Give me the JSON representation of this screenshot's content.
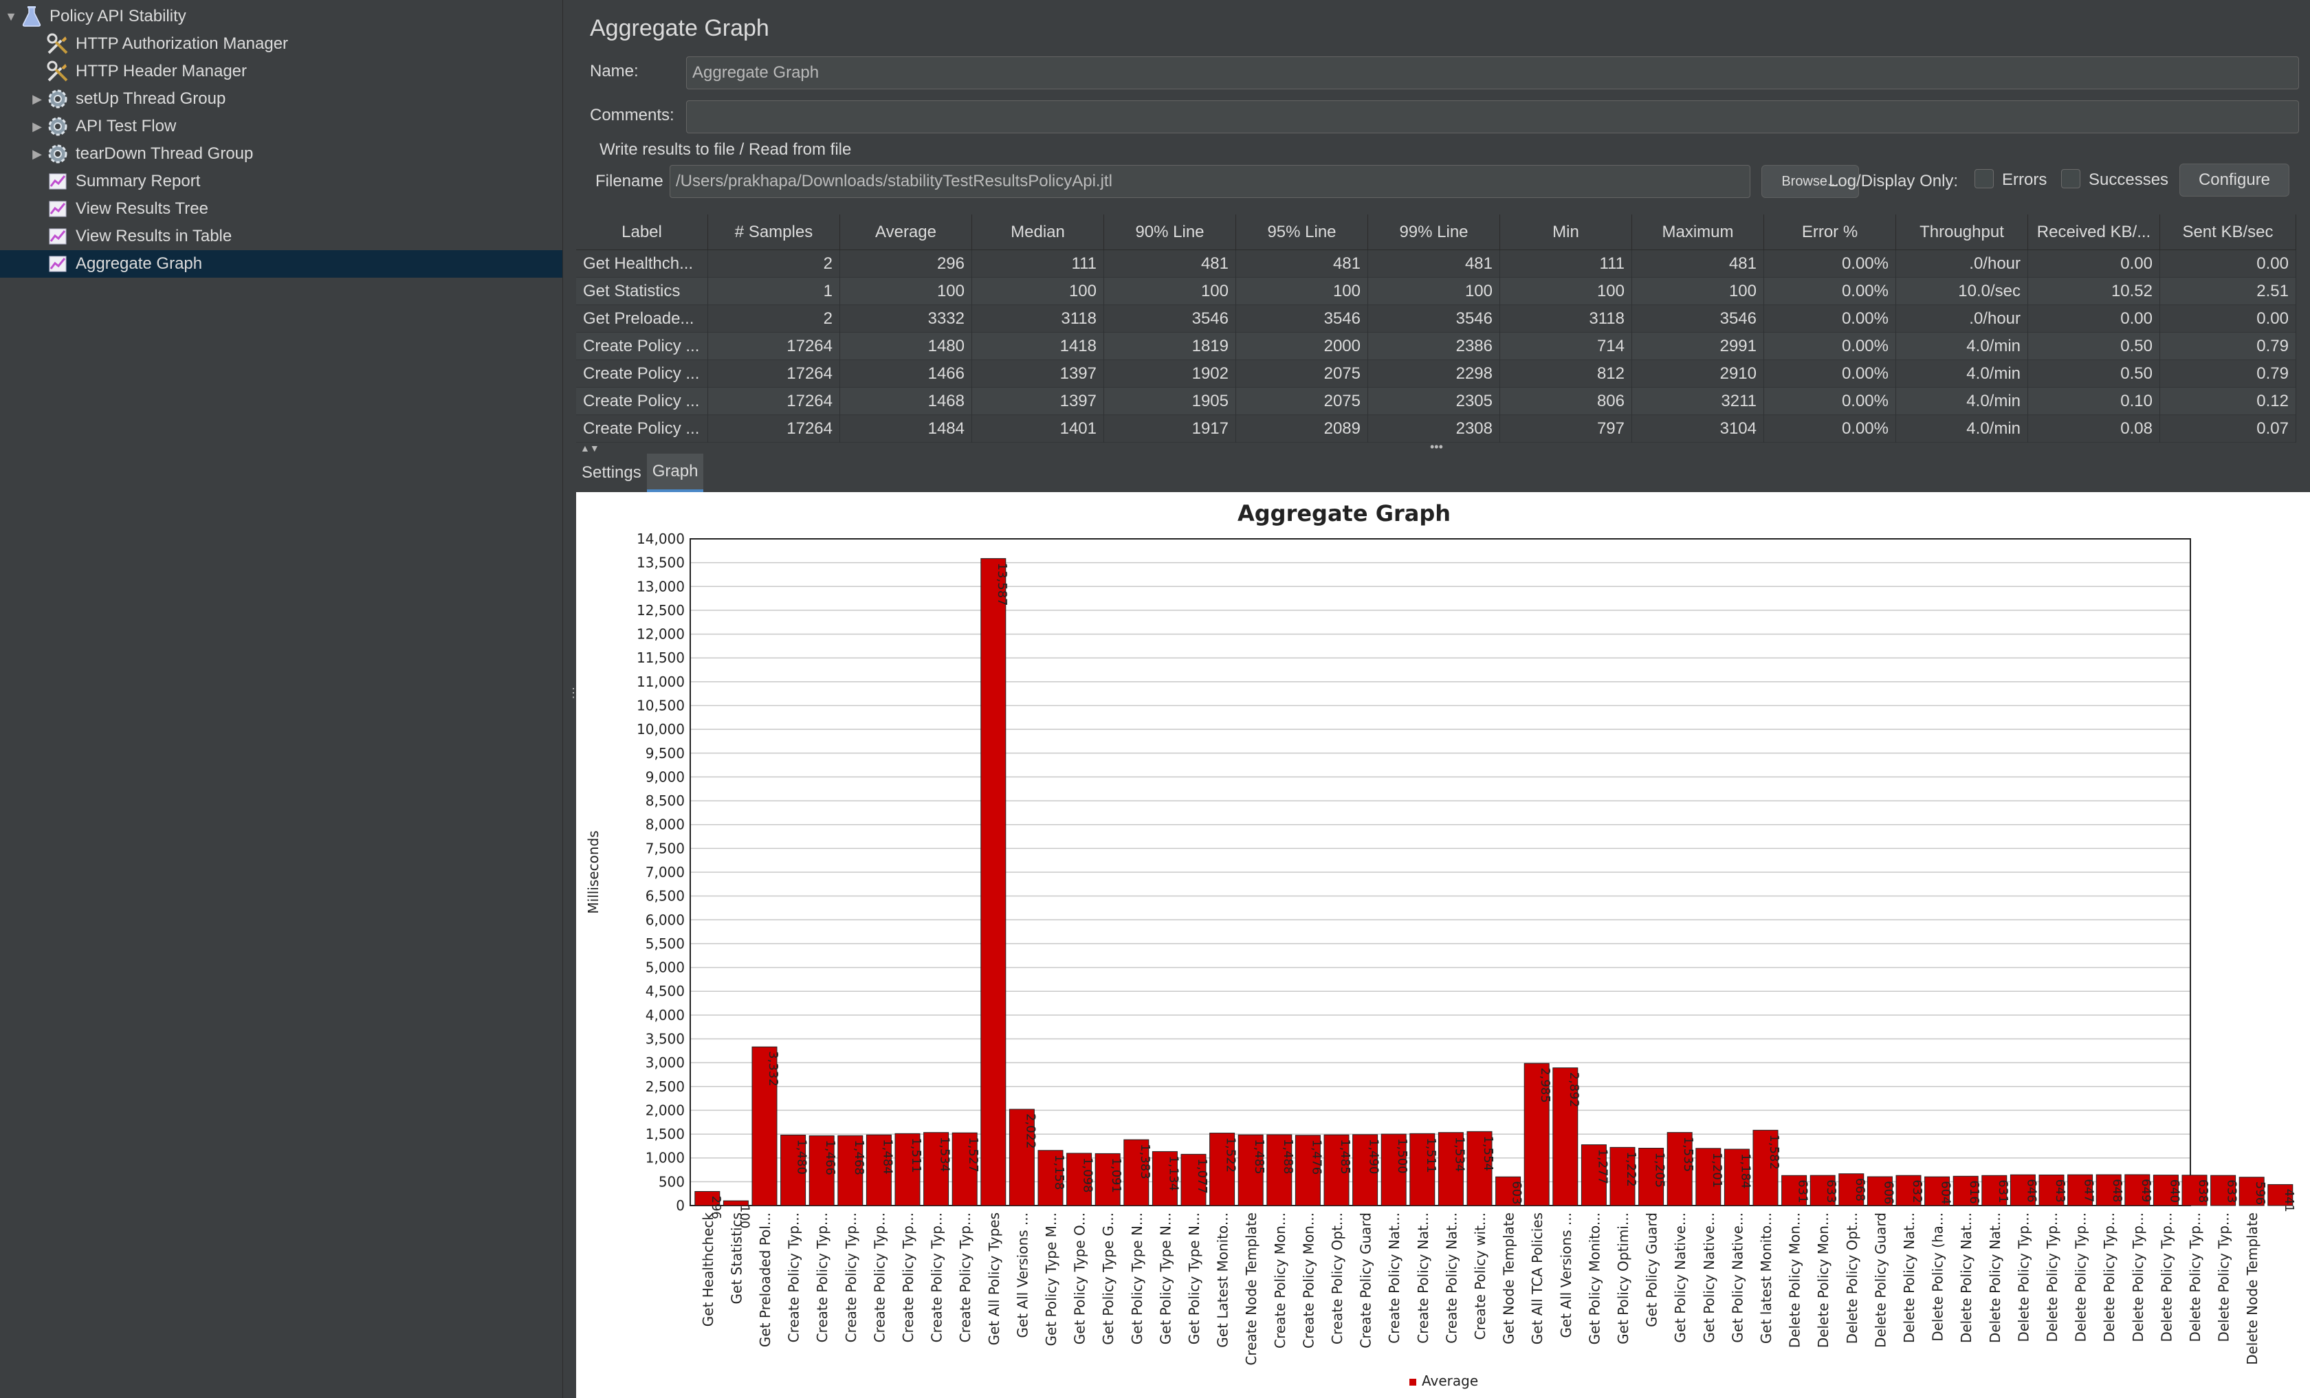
{
  "tree": {
    "items": [
      {
        "label": "Policy API Stability",
        "icon": "flask-icon",
        "level": 0,
        "toggle": "expanded"
      },
      {
        "label": "HTTP Authorization Manager",
        "icon": "tools-icon",
        "level": 1,
        "toggle": "none"
      },
      {
        "label": "HTTP Header Manager",
        "icon": "tools-icon",
        "level": 1,
        "toggle": "none"
      },
      {
        "label": "setUp Thread Group",
        "icon": "gear-icon",
        "level": 1,
        "toggle": "collapsed"
      },
      {
        "label": "API Test Flow",
        "icon": "gear-icon",
        "level": 1,
        "toggle": "collapsed"
      },
      {
        "label": "tearDown Thread Group",
        "icon": "gear-icon",
        "level": 1,
        "toggle": "collapsed"
      },
      {
        "label": "Summary Report",
        "icon": "chart-icon",
        "level": 1,
        "toggle": "none"
      },
      {
        "label": "View Results Tree",
        "icon": "chart-icon",
        "level": 1,
        "toggle": "none"
      },
      {
        "label": "View Results in Table",
        "icon": "chart-icon",
        "level": 1,
        "toggle": "none"
      },
      {
        "label": "Aggregate Graph",
        "icon": "chart-icon",
        "level": 1,
        "toggle": "none",
        "selected": true
      }
    ]
  },
  "panel": {
    "title": "Aggregate Graph",
    "name_label": "Name:",
    "name_value": "Aggregate Graph",
    "comments_label": "Comments:",
    "comments_value": "",
    "file_section_title": "Write results to file / Read from file",
    "filename_label": "Filename",
    "filename_value": "/Users/prakhapa/Downloads/stabilityTestResultsPolicyApi.jtl",
    "browse_label": "Browse...",
    "log_display_label": "Log/Display Only:",
    "errors_label": "Errors",
    "successes_label": "Successes",
    "configure_label": "Configure"
  },
  "table": {
    "headers": [
      "Label",
      "# Samples",
      "Average",
      "Median",
      "90% Line",
      "95% Line",
      "99% Line",
      "Min",
      "Maximum",
      "Error %",
      "Throughput",
      "Received KB/...",
      "Sent KB/sec"
    ],
    "rows": [
      [
        "Get Healthch...",
        "2",
        "296",
        "111",
        "481",
        "481",
        "481",
        "111",
        "481",
        "0.00%",
        ".0/hour",
        "0.00",
        "0.00"
      ],
      [
        "Get Statistics",
        "1",
        "100",
        "100",
        "100",
        "100",
        "100",
        "100",
        "100",
        "0.00%",
        "10.0/sec",
        "10.52",
        "2.51"
      ],
      [
        "Get Preloade...",
        "2",
        "3332",
        "3118",
        "3546",
        "3546",
        "3546",
        "3118",
        "3546",
        "0.00%",
        ".0/hour",
        "0.00",
        "0.00"
      ],
      [
        "Create Policy ...",
        "17264",
        "1480",
        "1418",
        "1819",
        "2000",
        "2386",
        "714",
        "2991",
        "0.00%",
        "4.0/min",
        "0.50",
        "0.79"
      ],
      [
        "Create Policy ...",
        "17264",
        "1466",
        "1397",
        "1902",
        "2075",
        "2298",
        "812",
        "2910",
        "0.00%",
        "4.0/min",
        "0.50",
        "0.79"
      ],
      [
        "Create Policy ...",
        "17264",
        "1468",
        "1397",
        "1905",
        "2075",
        "2305",
        "806",
        "3211",
        "0.00%",
        "4.0/min",
        "0.10",
        "0.12"
      ],
      [
        "Create Policy ...",
        "17264",
        "1484",
        "1401",
        "1917",
        "2089",
        "2308",
        "797",
        "3104",
        "0.00%",
        "4.0/min",
        "0.08",
        "0.07"
      ]
    ]
  },
  "tabs": [
    {
      "label": "Settings",
      "active": false
    },
    {
      "label": "Graph",
      "active": true
    }
  ],
  "chart_data": {
    "type": "bar",
    "title": "Aggregate Graph",
    "ylabel": "Milliseconds",
    "xlabel": "",
    "ylim": [
      0,
      14000
    ],
    "y_ticks": [
      "0",
      "500",
      "1,000",
      "1,500",
      "2,000",
      "2,500",
      "3,000",
      "3,500",
      "4,000",
      "4,500",
      "5,000",
      "5,500",
      "6,000",
      "6,500",
      "7,000",
      "7,500",
      "8,000",
      "8,500",
      "9,000",
      "9,500",
      "10,000",
      "10,500",
      "11,000",
      "11,500",
      "12,000",
      "12,500",
      "13,000",
      "13,500",
      "14,000"
    ],
    "grid": true,
    "legend": "bottom-center",
    "bar_color": "#cc0000",
    "series": [
      {
        "name": "Average"
      }
    ],
    "categories": [
      "Get Healthcheck",
      "Get Statistics",
      "Get Preloaded Pol...",
      "Create Policy Typ...",
      "Create Policy Typ...",
      "Create Policy Typ...",
      "Create Policy Typ...",
      "Create Policy Typ...",
      "Create Policy Typ...",
      "Create Policy Typ...",
      "Get All Policy Types",
      "Get All Versions ...",
      "Get Policy Type M...",
      "Get Policy Type O...",
      "Get Policy Type G...",
      "Get Policy Type N...",
      "Get Policy Type N...",
      "Get Policy Type N...",
      "Get Latest Monito...",
      "Create Node Template",
      "Create Policy Mon...",
      "Create Policy Mon...",
      "Create Policy Opt...",
      "Create Policy Guard",
      "Create Policy Nat...",
      "Create Policy Nat...",
      "Create Policy Nat...",
      "Create Policy wit...",
      "Get Node Template",
      "Get All TCA Policies",
      "Get All Versions ...",
      "Get Policy Monito...",
      "Get Policy Optimi...",
      "Get Policy Guard",
      "Get Policy Native...",
      "Get Policy Native...",
      "Get Policy Native...",
      "Get latest Monito...",
      "Delete Policy Mon...",
      "Delete Policy Mon...",
      "Delete Policy Opt...",
      "Delete Policy Guard",
      "Delete Policy Nat...",
      "Delete Policy (ha...",
      "Delete Policy Nat...",
      "Delete Policy Nat...",
      "Delete Policy Typ...",
      "Delete Policy Typ...",
      "Delete Policy Typ...",
      "Delete Policy Typ...",
      "Delete Policy Typ...",
      "Delete Policy Typ...",
      "Delete Policy Typ...",
      "Delete Policy Typ...",
      "Delete Node Template",
      ""
    ],
    "values": [
      296,
      100,
      3332,
      1480,
      1466,
      1468,
      1484,
      1511,
      1534,
      1527,
      13587,
      2022,
      1158,
      1098,
      1091,
      1383,
      1134,
      1077,
      1522,
      1485,
      1488,
      1476,
      1485,
      1490,
      1500,
      1511,
      1534,
      1554,
      603,
      2985,
      2892,
      1277,
      1222,
      1205,
      1535,
      1201,
      1184,
      1582,
      631,
      633,
      668,
      606,
      632,
      604,
      616,
      631,
      646,
      643,
      647,
      648,
      649,
      640,
      638,
      633,
      596,
      441
    ],
    "value_labels": [
      "296",
      "100",
      "3,332",
      "1,480",
      "1,466",
      "1,468",
      "1,484",
      "1,511",
      "1,534",
      "1,527",
      "13,587",
      "2,022",
      "1,158",
      "1,098",
      "1,091",
      "1,383",
      "1,134",
      "1,077",
      "1,522",
      "1,485",
      "1,488",
      "1,476",
      "1,485",
      "1,490",
      "1,500",
      "1,511",
      "1,534",
      "1,554",
      "603",
      "2,985",
      "2,892",
      "1,277",
      "1,222",
      "1,205",
      "1,535",
      "1,201",
      "1,184",
      "1,582",
      "631",
      "633",
      "668",
      "606",
      "632",
      "604",
      "616",
      "631",
      "646",
      "643",
      "647",
      "648",
      "649",
      "640",
      "638",
      "633",
      "596",
      "441"
    ]
  }
}
